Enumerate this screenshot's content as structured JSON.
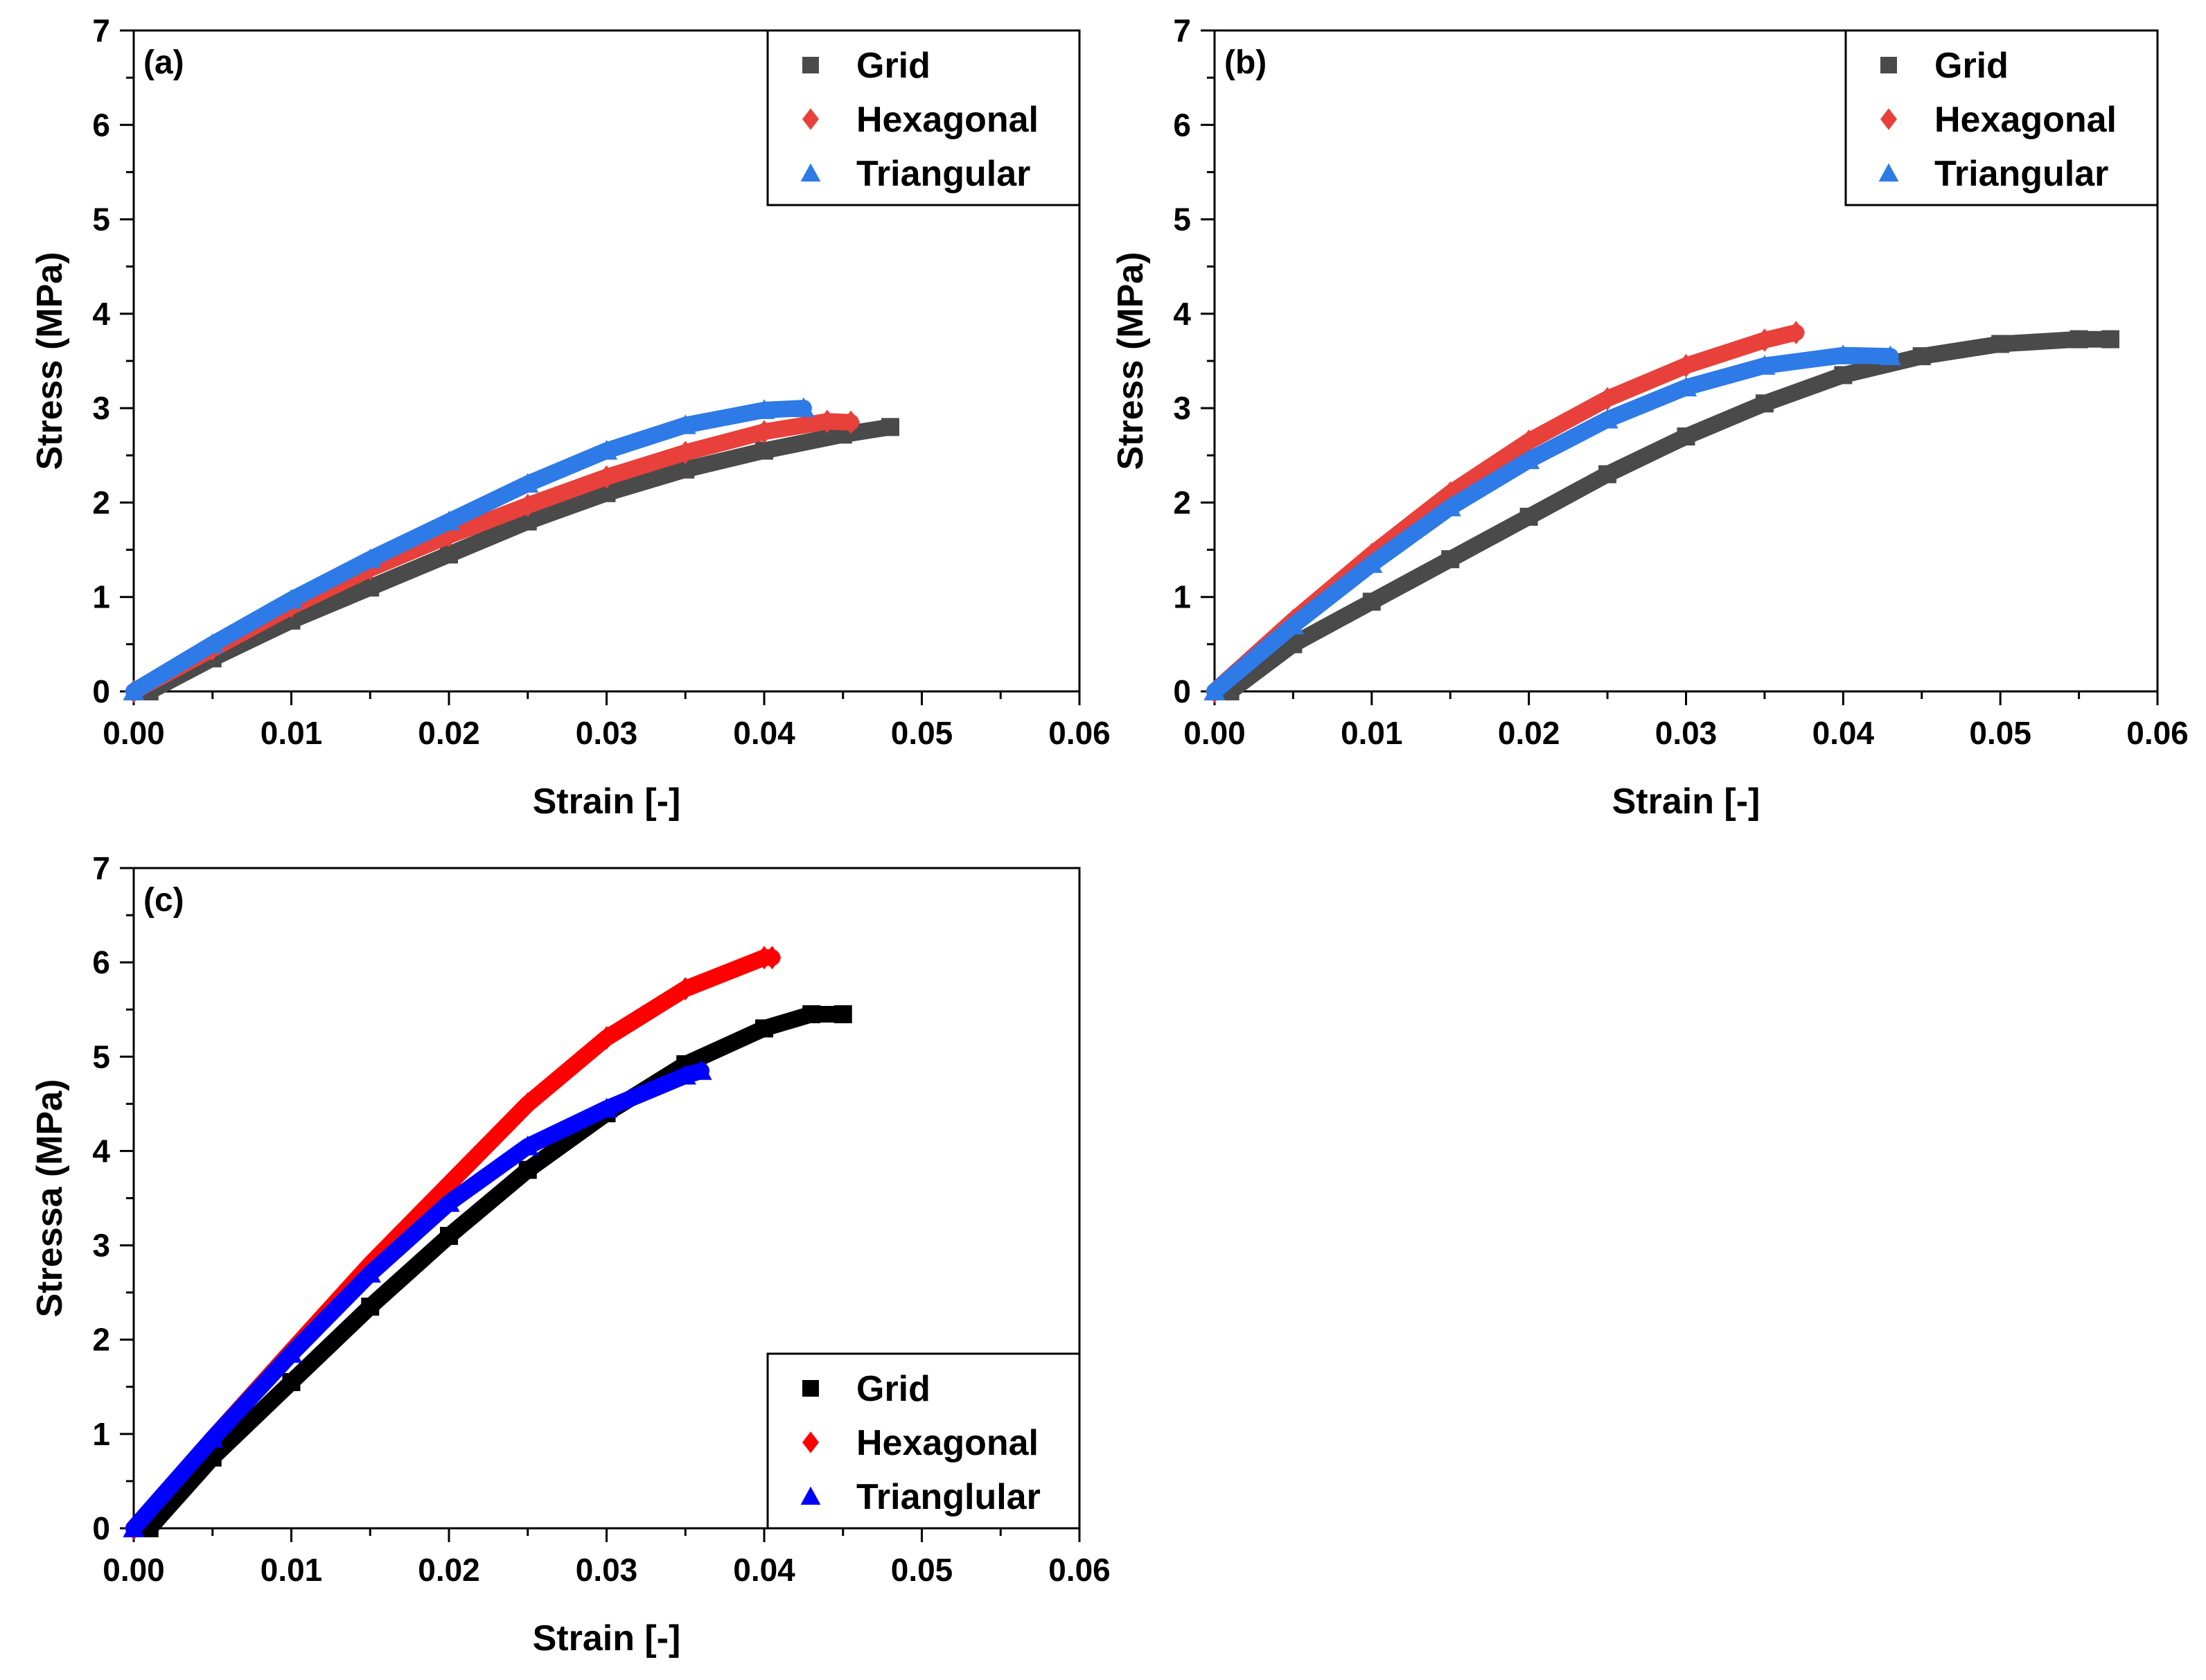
{
  "chart_data": [
    {
      "id": "a",
      "type": "scatter",
      "panel_label": "(a)",
      "xlabel": "Strain [-]",
      "ylabel": "Stress (MPa)",
      "xlim": [
        0,
        0.06
      ],
      "ylim": [
        0,
        7
      ],
      "xticks": [
        "0.00",
        "0.01",
        "0.02",
        "0.03",
        "0.04",
        "0.05",
        "0.06"
      ],
      "yticks": [
        "0",
        "1",
        "2",
        "3",
        "4",
        "5",
        "6",
        "7"
      ],
      "legend_position": "top-right",
      "series": [
        {
          "name": "Grid",
          "color": "#4a4a4a",
          "marker": "square",
          "x": [
            0.001,
            0.005,
            0.01,
            0.015,
            0.02,
            0.025,
            0.03,
            0.035,
            0.04,
            0.045,
            0.048
          ],
          "y": [
            0,
            0.35,
            0.75,
            1.1,
            1.45,
            1.8,
            2.1,
            2.35,
            2.55,
            2.72,
            2.8
          ]
        },
        {
          "name": "Hexagonal",
          "color": "#e8403a",
          "marker": "diamond",
          "x": [
            0,
            0.005,
            0.01,
            0.015,
            0.02,
            0.025,
            0.03,
            0.035,
            0.04,
            0.044,
            0.0455
          ],
          "y": [
            0,
            0.45,
            0.9,
            1.3,
            1.65,
            1.97,
            2.27,
            2.53,
            2.75,
            2.86,
            2.85
          ]
        },
        {
          "name": "Triangular",
          "color": "#2e7ae6",
          "marker": "triangle",
          "x": [
            0,
            0.005,
            0.01,
            0.015,
            0.02,
            0.025,
            0.03,
            0.035,
            0.04,
            0.0425
          ],
          "y": [
            0,
            0.5,
            0.97,
            1.4,
            1.8,
            2.2,
            2.55,
            2.82,
            2.98,
            3.0
          ]
        }
      ]
    },
    {
      "id": "b",
      "type": "scatter",
      "panel_label": "(b)",
      "xlabel": "Strain [-]",
      "ylabel": "Stress (MPa)",
      "xlim": [
        0,
        0.06
      ],
      "ylim": [
        0,
        7
      ],
      "xticks": [
        "0.00",
        "0.01",
        "0.02",
        "0.03",
        "0.04",
        "0.05",
        "0.06"
      ],
      "yticks": [
        "0",
        "1",
        "2",
        "3",
        "4",
        "5",
        "6",
        "7"
      ],
      "legend_position": "top-right",
      "series": [
        {
          "name": "Grid",
          "color": "#4a4a4a",
          "marker": "square",
          "x": [
            0.001,
            0.005,
            0.01,
            0.015,
            0.02,
            0.025,
            0.03,
            0.035,
            0.04,
            0.045,
            0.05,
            0.055,
            0.057
          ],
          "y": [
            0,
            0.5,
            0.95,
            1.4,
            1.85,
            2.3,
            2.7,
            3.05,
            3.35,
            3.55,
            3.68,
            3.73,
            3.73
          ]
        },
        {
          "name": "Hexagonal",
          "color": "#e8403a",
          "marker": "diamond",
          "x": [
            0,
            0.005,
            0.01,
            0.015,
            0.02,
            0.025,
            0.03,
            0.035,
            0.037
          ],
          "y": [
            0,
            0.75,
            1.45,
            2.1,
            2.65,
            3.1,
            3.45,
            3.72,
            3.8
          ]
        },
        {
          "name": "Triangular",
          "color": "#2e7ae6",
          "marker": "triangle",
          "x": [
            0,
            0.005,
            0.01,
            0.015,
            0.02,
            0.025,
            0.03,
            0.035,
            0.04,
            0.043
          ],
          "y": [
            0,
            0.7,
            1.35,
            1.95,
            2.45,
            2.88,
            3.22,
            3.45,
            3.56,
            3.55
          ]
        }
      ]
    },
    {
      "id": "c",
      "type": "scatter",
      "panel_label": "(c)",
      "xlabel": "Strain [-]",
      "ylabel": "Stressa (MPa)",
      "xlim": [
        0,
        0.06
      ],
      "ylim": [
        0,
        7
      ],
      "xticks": [
        "0.00",
        "0.01",
        "0.02",
        "0.03",
        "0.04",
        "0.05",
        "0.06"
      ],
      "yticks": [
        "0",
        "1",
        "2",
        "3",
        "4",
        "5",
        "6",
        "7"
      ],
      "legend_position": "bottom-right",
      "series": [
        {
          "name": "Grid",
          "color": "#000000",
          "marker": "square",
          "x": [
            0.001,
            0.005,
            0.01,
            0.015,
            0.02,
            0.025,
            0.03,
            0.035,
            0.04,
            0.043,
            0.045
          ],
          "y": [
            0,
            0.75,
            1.55,
            2.35,
            3.1,
            3.8,
            4.4,
            4.92,
            5.3,
            5.45,
            5.45
          ]
        },
        {
          "name": "Hexagonal",
          "color": "#ff0000",
          "marker": "diamond",
          "x": [
            0,
            0.005,
            0.01,
            0.015,
            0.02,
            0.025,
            0.03,
            0.035,
            0.04,
            0.0405
          ],
          "y": [
            0,
            0.95,
            1.88,
            2.8,
            3.65,
            4.5,
            5.2,
            5.72,
            6.05,
            6.05
          ]
        },
        {
          "name": "Trianglular",
          "color": "#0000ff",
          "marker": "triangle",
          "x": [
            0,
            0.005,
            0.01,
            0.015,
            0.02,
            0.025,
            0.03,
            0.035,
            0.036
          ],
          "y": [
            0,
            0.95,
            1.85,
            2.7,
            3.45,
            4.05,
            4.45,
            4.8,
            4.85
          ]
        }
      ]
    }
  ]
}
